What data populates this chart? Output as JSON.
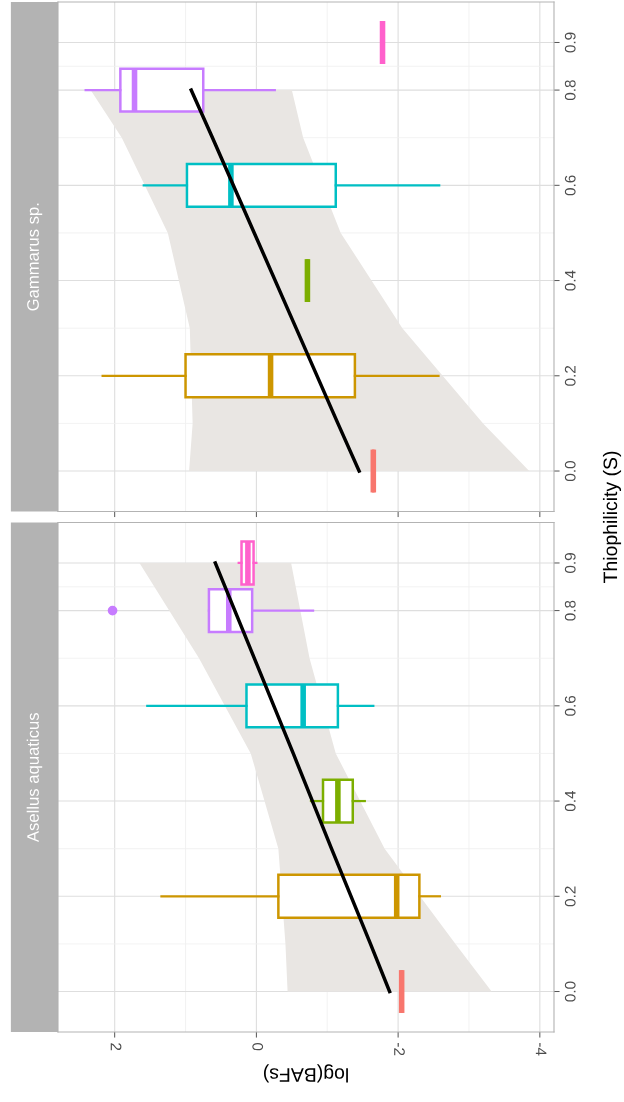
{
  "chart_data": [
    {
      "type": "box",
      "orientation": "horizontal",
      "title": "Gammarus sp.",
      "tick_labels": "y",
      "grid": true,
      "x": [
        0,
        0.2,
        0.4,
        0.6,
        0.8,
        0.9
      ],
      "colors": [
        "#f8766d",
        "#cd9600",
        "#7cae00",
        "#00bfc4",
        "#c77cff",
        "#ff61cc"
      ],
      "boxes": [
        {
          "low": -1.65,
          "q1": -1.65,
          "median": -1.65,
          "q3": -1.65,
          "high": -1.65
        },
        {
          "low": -2.57,
          "q1": -1.39,
          "median": -0.2,
          "q3": 1.0,
          "high": 2.17
        },
        {
          "low": -0.72,
          "q1": -0.72,
          "median": -0.72,
          "q3": -0.72,
          "high": -0.72
        },
        {
          "low": -2.58,
          "q1": -1.12,
          "median": 0.36,
          "q3": 0.98,
          "high": 1.59
        },
        {
          "low": -0.26,
          "q1": 0.75,
          "median": 1.72,
          "q3": 1.92,
          "high": 2.41
        },
        {
          "low": -1.78,
          "q1": -1.78,
          "median": -1.78,
          "q3": -1.78,
          "high": -1.78
        }
      ],
      "series": [
        {
          "type": "line",
          "color": "#000000",
          "x": [
            0,
            0.1,
            0.3,
            0.5,
            0.7,
            0.8
          ],
          "values": [
            -1.45,
            -1.15,
            -0.56,
            0.03,
            0.62,
            0.92
          ],
          "lower": [
            -3.85,
            -3.2,
            -2.06,
            -1.19,
            -0.66,
            -0.5
          ],
          "upper": [
            0.95,
            0.9,
            0.94,
            1.25,
            1.9,
            2.34
          ]
        }
      ],
      "xlim": [
        2.8,
        -4.2
      ],
      "xticks": [
        2,
        0,
        -2,
        -4
      ],
      "ylim": [
        -0.085,
        0.985
      ],
      "yticks": [
        {
          "value": 0,
          "label": "0.0"
        },
        {
          "value": 0.2,
          "label": "0.2"
        },
        {
          "value": 0.4,
          "label": "0.4"
        },
        {
          "value": 0.6,
          "label": "0.6"
        },
        {
          "value": 0.8,
          "label": "0.8"
        },
        {
          "value": 0.9,
          "label": "0.9"
        }
      ]
    },
    {
      "type": "box",
      "orientation": "horizontal",
      "title": "Asellus aquaticus",
      "grid": true,
      "xlabel": "log(BAFs)",
      "ylabel": "Thiophilicity (S)",
      "x": [
        0,
        0.2,
        0.4,
        0.6,
        0.8,
        0.9
      ],
      "colors": [
        "#f8766d",
        "#cd9600",
        "#7cae00",
        "#00bfc4",
        "#c77cff",
        "#ff61cc"
      ],
      "boxes": [
        {
          "low": -2.05,
          "q1": -2.05,
          "median": -2.05,
          "q3": -2.05,
          "high": -2.05
        },
        {
          "low": -2.59,
          "q1": -2.3,
          "median": -1.98,
          "q3": -0.31,
          "high": 1.34
        },
        {
          "low": -1.53,
          "q1": -1.36,
          "median": -1.15,
          "q3": -0.94,
          "high": -0.77
        },
        {
          "low": -1.65,
          "q1": -1.15,
          "median": -0.66,
          "q3": 0.14,
          "high": 1.54
        },
        {
          "low": -0.8,
          "q1": 0.06,
          "median": 0.39,
          "q3": 0.67,
          "high": 0.67,
          "outliers": [
            2.03
          ]
        },
        {
          "low": 0.0,
          "q1": 0.04,
          "median": 0.12,
          "q3": 0.21,
          "high": 0.25
        }
      ],
      "series": [
        {
          "type": "line",
          "color": "#000000",
          "x": [
            0,
            0.1,
            0.3,
            0.5,
            0.7,
            0.9
          ],
          "values": [
            -1.88,
            -1.61,
            -1.06,
            -0.52,
            0.03,
            0.58
          ],
          "lower": [
            -3.32,
            -2.81,
            -1.81,
            -1.12,
            -0.75,
            -0.49
          ],
          "upper": [
            -0.44,
            -0.41,
            -0.31,
            0.08,
            0.81,
            1.65
          ]
        }
      ],
      "xlim": [
        2.8,
        -4.2
      ],
      "xticks": [
        2,
        0,
        -2,
        -4
      ],
      "ylim": [
        -0.085,
        0.985
      ],
      "yticks": [
        {
          "value": 0,
          "label": "0.0"
        },
        {
          "value": 0.2,
          "label": "0.2"
        },
        {
          "value": 0.4,
          "label": "0.4"
        },
        {
          "value": 0.6,
          "label": "0.6"
        },
        {
          "value": 0.8,
          "label": "0.8"
        },
        {
          "value": 0.9,
          "label": "0.9"
        }
      ]
    }
  ]
}
